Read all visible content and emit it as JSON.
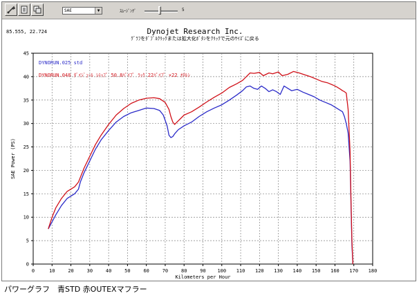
{
  "toolbar": {
    "select_value": "SAE",
    "smoothing_label": "ｽﾑｰｼﾞﾝｸﾞ",
    "smoothing_value": "5",
    "icons": [
      "wrench-icon",
      "document-icon",
      "overlay-icon"
    ]
  },
  "cursor_readout": "85.555, 22.724",
  "caption": "パワーグラフ　青STD 赤OUTEXマフラー",
  "chart_data": {
    "type": "line",
    "title": "Dynojet  Research  Inc.",
    "subtitle": "ｸﾞﾗﾌをﾀﾞﾌﾞﾙｸﾘｯｸまたは拡大化ﾎﾞﾀﾝをｸﾘｯｸで元のｻｲｽﾞに戻る",
    "xlabel": "Kilometers per Hour",
    "ylabel": "SAE Power (PS)",
    "xlim": [
      0,
      180
    ],
    "ylim": [
      0,
      45
    ],
    "xticks": [
      0,
      10,
      20,
      30,
      40,
      50,
      60,
      70,
      80,
      90,
      100,
      110,
      120,
      130,
      140,
      150,
      160,
      170,
      180
    ],
    "yticks": [
      0,
      5,
      10,
      15,
      20,
      25,
      30,
      35,
      40,
      45
    ],
    "grid": true,
    "legend_position": "top-left",
    "series": [
      {
        "name": "DYNORUN.025  std",
        "color": "#2a2ac8",
        "x": [
          8,
          10,
          12,
          15,
          18,
          20,
          22,
          24,
          25,
          27,
          30,
          33,
          36,
          40,
          44,
          48,
          52,
          56,
          60,
          64,
          67,
          69,
          71,
          72,
          73,
          74,
          75,
          77,
          80,
          84,
          88,
          92,
          96,
          100,
          104,
          108,
          111,
          113,
          115,
          117,
          119,
          121,
          123,
          125,
          127,
          129,
          131,
          133,
          135,
          137,
          140,
          143,
          146,
          149,
          152,
          155,
          158,
          160,
          162,
          164,
          165,
          166,
          167,
          168,
          168.5,
          169,
          169.5
        ],
        "y": [
          7.5,
          9,
          10.5,
          12.5,
          14,
          14.5,
          15,
          16,
          17.5,
          19.5,
          22,
          24.5,
          26.5,
          28.5,
          30.3,
          31.5,
          32.3,
          32.8,
          33.3,
          33.2,
          32.8,
          31.8,
          29.5,
          27.5,
          27,
          27.2,
          27.8,
          28.7,
          29.5,
          30.3,
          31.5,
          32.5,
          33.3,
          34,
          35,
          36.1,
          37,
          37.8,
          38,
          37.5,
          37.3,
          38,
          37.5,
          36.8,
          37.2,
          36.8,
          36.2,
          38,
          37.5,
          37,
          37.3,
          36.7,
          36.2,
          35.7,
          35,
          34.5,
          34,
          33.5,
          33,
          32.5,
          31.5,
          30,
          28,
          22,
          13,
          4,
          0
        ]
      },
      {
        "name": "DYNORUN.048  ﾀﾞｲｼﾞｭｰﾙ ｼﾃｯﾌﾟ 50.8ﾊﾟｲﾌﾟ ﾗｯｸ 22ﾊﾟｲﾌﾟ ×22 ｵﾁﾙｼ",
        "color": "#d01018",
        "x": [
          8,
          10,
          12,
          15,
          18,
          20,
          22,
          24,
          25,
          27,
          30,
          33,
          36,
          40,
          44,
          48,
          52,
          56,
          60,
          64,
          67,
          70,
          72,
          73,
          74,
          75,
          76,
          78,
          80,
          84,
          88,
          92,
          96,
          100,
          104,
          108,
          111,
          113,
          115,
          117,
          120,
          122,
          125,
          127,
          130,
          132,
          135,
          138,
          141,
          144,
          147,
          150,
          153,
          156,
          159,
          161,
          163,
          164,
          165,
          166,
          167,
          168,
          168.5,
          169,
          169.5
        ],
        "y": [
          7.5,
          10,
          12,
          14,
          15.5,
          16,
          16.5,
          17.5,
          18.5,
          20.5,
          23,
          25.5,
          27.5,
          29.8,
          31.8,
          33.2,
          34.3,
          35,
          35.4,
          35.5,
          35.3,
          34.5,
          33,
          31.5,
          30.3,
          29.8,
          30.2,
          31,
          31.8,
          32.5,
          33.5,
          34.6,
          35.6,
          36.5,
          37.7,
          38.5,
          39.2,
          40,
          40.8,
          40.7,
          40.9,
          40.2,
          40.8,
          40.6,
          41,
          40.2,
          40.5,
          41.1,
          40.8,
          40.4,
          40,
          39.5,
          39,
          38.7,
          38.2,
          37.8,
          37.3,
          37,
          36.8,
          36.5,
          33,
          24,
          14,
          5,
          0
        ]
      }
    ]
  }
}
